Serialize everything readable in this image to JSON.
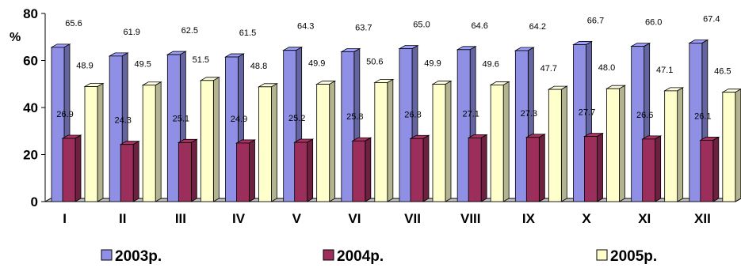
{
  "chart_data": {
    "type": "bar",
    "ylabel": "%",
    "ylim": [
      0,
      80
    ],
    "yticks": [
      0,
      20,
      40,
      60,
      80
    ],
    "categories": [
      "I",
      "II",
      "III",
      "IV",
      "V",
      "VI",
      "VII",
      "VIII",
      "IX",
      "X",
      "XI",
      "XII"
    ],
    "series": [
      {
        "name": "2003р.",
        "color": "#8f8fe6",
        "values": [
          65.6,
          61.9,
          62.5,
          61.5,
          64.3,
          63.7,
          65.0,
          64.6,
          64.2,
          66.7,
          66.0,
          67.4
        ],
        "labels": [
          "65.6",
          "61.9",
          "62.5",
          "61.5",
          "64.3",
          "63.7",
          "65.0",
          "64.6",
          "64.2",
          "66.7",
          "66.0",
          "67.4"
        ]
      },
      {
        "name": "2004р.",
        "color": "#9b2e5a",
        "values": [
          26.9,
          24.3,
          25.1,
          24.9,
          25.2,
          25.8,
          26.8,
          27.1,
          27.3,
          27.7,
          26.6,
          26.1
        ],
        "labels": [
          "26.9",
          "24.3",
          "25.1",
          "24.9",
          "25.2",
          "25.8",
          "26.8",
          "27.1",
          "27.3",
          "27.7",
          "26.6",
          "26.1"
        ]
      },
      {
        "name": "2005р.",
        "color": "#ffffcc",
        "values": [
          48.9,
          49.5,
          51.5,
          48.8,
          49.9,
          50.6,
          49.9,
          49.6,
          47.7,
          48.0,
          47.1,
          46.5
        ],
        "labels": [
          "48.9",
          "49.5",
          "51.5",
          "48.8",
          "49.9",
          "50.6",
          "49.9",
          "49.6",
          "47.7",
          "48.0",
          "47.1",
          "46.5"
        ]
      }
    ],
    "grid": false,
    "legend": "bottom"
  }
}
